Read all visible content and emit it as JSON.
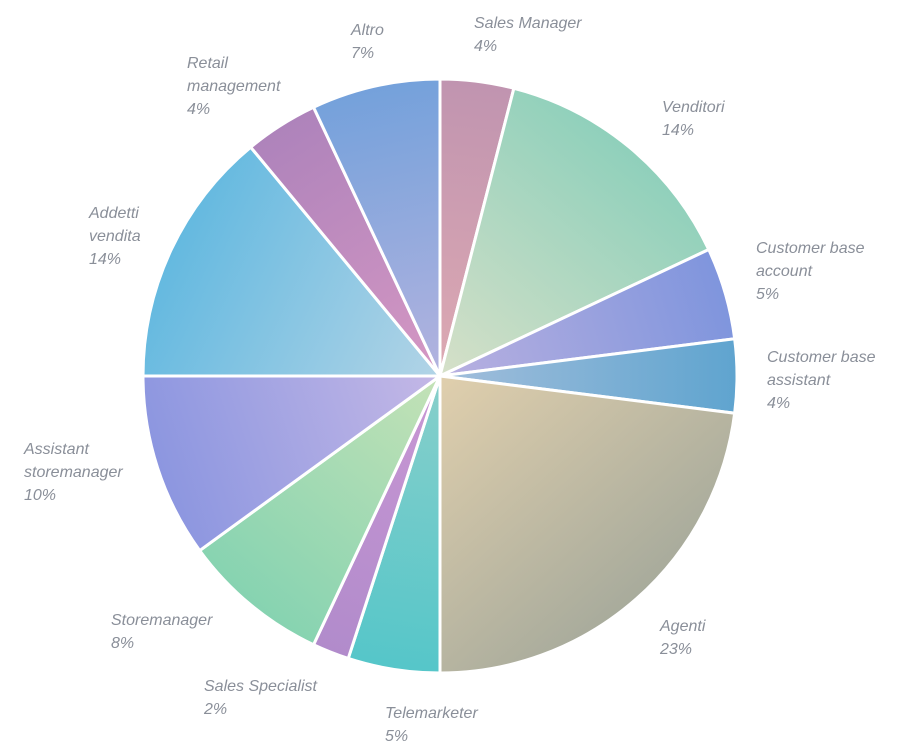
{
  "chart_data": {
    "type": "pie",
    "title": "",
    "start_angle_deg": 0,
    "direction": "clockwise",
    "slices": [
      {
        "label": "Sales Manager",
        "value": 4,
        "value_label": "4%",
        "color_start": "#dda9b2",
        "color_end": "#c094b0"
      },
      {
        "label": "Venditori",
        "value": 14,
        "value_label": "14%",
        "color_start": "#d6e0c8",
        "color_end": "#8fd0bb"
      },
      {
        "label": "Customer base account",
        "value": 5,
        "value_label": "5%",
        "color_start": "#b9b0e0",
        "color_end": "#7f95dd"
      },
      {
        "label": "Customer base assistant",
        "value": 4,
        "value_label": "4%",
        "color_start": "#a2bedb",
        "color_end": "#5fa4cf"
      },
      {
        "label": "Agenti",
        "value": 23,
        "value_label": "23%",
        "color_start": "#e0cfad",
        "color_end": "#a8ab9c"
      },
      {
        "label": "Telemarketer",
        "value": 5,
        "value_label": "5%",
        "color_start": "#88cfca",
        "color_end": "#55c6c9"
      },
      {
        "label": "Sales Specialist",
        "value": 2,
        "value_label": "2%",
        "color_start": "#c997d4",
        "color_end": "#b18bcb"
      },
      {
        "label": "Storemanager",
        "value": 8,
        "value_label": "8%",
        "color_start": "#c4e2b6",
        "color_end": "#86d3b1"
      },
      {
        "label": "Assistant storemanager",
        "value": 10,
        "value_label": "10%",
        "color_start": "#c4b8e6",
        "color_end": "#8c96e0"
      },
      {
        "label": "Addetti vendita",
        "value": 14,
        "value_label": "14%",
        "color_start": "#b2d4e6",
        "color_end": "#64b9e0"
      },
      {
        "label": "Retail management",
        "value": 4,
        "value_label": "4%",
        "color_start": "#d597c3",
        "color_end": "#ae83bb"
      },
      {
        "label": "Altro",
        "value": 7,
        "value_label": "7%",
        "color_start": "#b3b3df",
        "color_end": "#74a1db"
      }
    ]
  }
}
